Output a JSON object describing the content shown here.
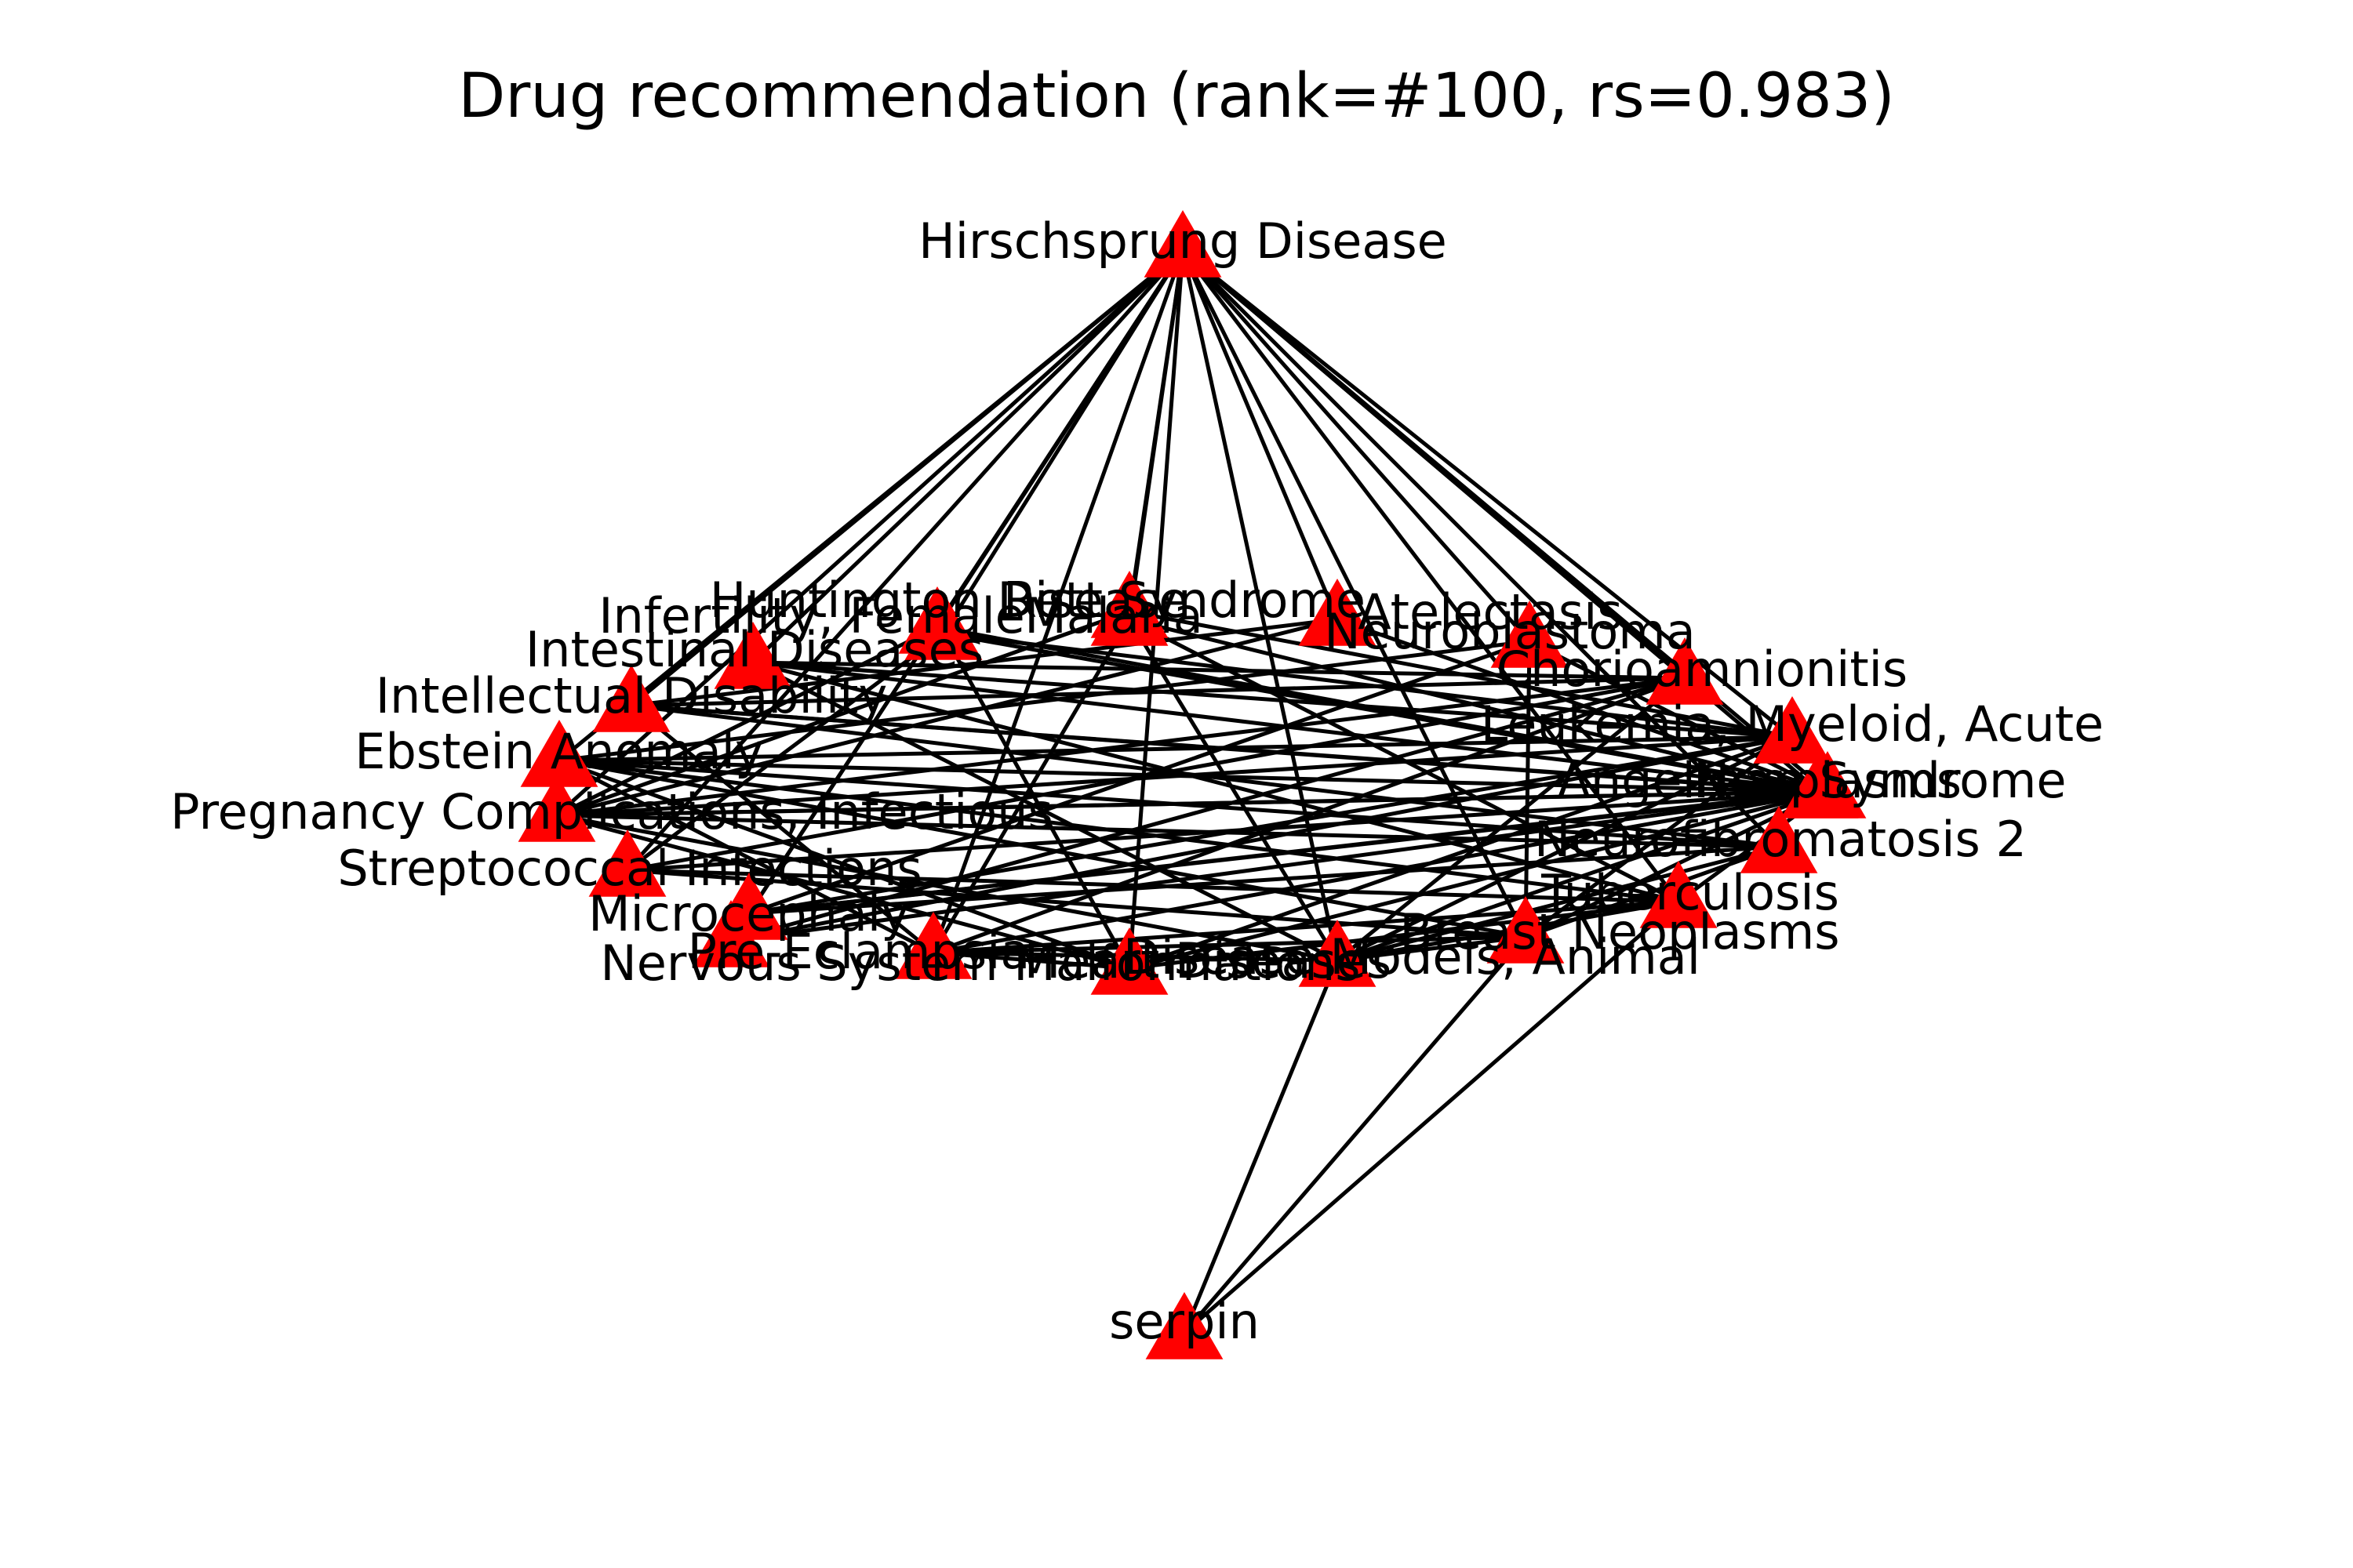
{
  "title": "Drug recommendation (rank=#100, rs=0.983)",
  "colors": {
    "node": "#ff0000",
    "edge": "#000000",
    "label": "#000000",
    "background": "#ffffff"
  },
  "node_shape": "triangle",
  "nodes": [
    {
      "id": "hirschsprung",
      "label": "Hirschsprung Disease"
    },
    {
      "id": "infertility",
      "label": "Infertility, Female"
    },
    {
      "id": "huntington",
      "label": "Huntington Disease"
    },
    {
      "id": "rett",
      "label": "Rett Syndrome"
    },
    {
      "id": "malaria",
      "label": "Malaria"
    },
    {
      "id": "atelectasis",
      "label": "Atelectasis"
    },
    {
      "id": "neuroblastoma",
      "label": "Neuroblastoma"
    },
    {
      "id": "intestinal",
      "label": "Intestinal Diseases"
    },
    {
      "id": "chorioamnionitis",
      "label": "Chorioamnionitis"
    },
    {
      "id": "intellectual",
      "label": "Intellectual Disability"
    },
    {
      "id": "leukemia",
      "label": "Leukemia, Myeloid, Acute"
    },
    {
      "id": "ebstein",
      "label": "Ebstein Anomaly"
    },
    {
      "id": "angelman",
      "label": "Angelman Syndrome"
    },
    {
      "id": "neoplasms",
      "label": "Neoplasms"
    },
    {
      "id": "pregnancy",
      "label": "Pregnancy Complications, Infectious"
    },
    {
      "id": "nf2",
      "label": "Neurofibromatosis 2"
    },
    {
      "id": "streptococcal",
      "label": "Streptococcal Infections"
    },
    {
      "id": "tuberculosis",
      "label": "Tuberculosis"
    },
    {
      "id": "microcephaly",
      "label": "Microcephaly"
    },
    {
      "id": "breast",
      "label": "Breast Neoplasms"
    },
    {
      "id": "preeclampsia",
      "label": "Pre-Eclampsia"
    },
    {
      "id": "nervous",
      "label": "Nervous System Malformations"
    },
    {
      "id": "disease_models",
      "label": "Disease Models, Animal"
    },
    {
      "id": "heart_disease",
      "label": "Heart Diseases"
    },
    {
      "id": "serpin",
      "label": "serpin"
    }
  ],
  "edges": [
    [
      "hirschsprung",
      "infertility"
    ],
    [
      "hirschsprung",
      "intestinal"
    ],
    [
      "hirschsprung",
      "intellectual"
    ],
    [
      "hirschsprung",
      "ebstein"
    ],
    [
      "hirschsprung",
      "pregnancy"
    ],
    [
      "hirschsprung",
      "streptococcal"
    ],
    [
      "hirschsprung",
      "microcephaly"
    ],
    [
      "hirschsprung",
      "preeclampsia"
    ],
    [
      "hirschsprung",
      "nervous"
    ],
    [
      "hirschsprung",
      "heart_disease"
    ],
    [
      "hirschsprung",
      "disease_models"
    ],
    [
      "hirschsprung",
      "breast"
    ],
    [
      "hirschsprung",
      "tuberculosis"
    ],
    [
      "hirschsprung",
      "nf2"
    ],
    [
      "hirschsprung",
      "neoplasms"
    ],
    [
      "hirschsprung",
      "leukemia"
    ],
    [
      "hirschsprung",
      "chorioamnionitis"
    ],
    [
      "hirschsprung",
      "neuroblastoma"
    ],
    [
      "hirschsprung",
      "atelectasis"
    ],
    [
      "hirschsprung",
      "malaria"
    ],
    [
      "hirschsprung",
      "rett"
    ],
    [
      "hirschsprung",
      "angelman"
    ],
    [
      "hirschsprung",
      "huntington"
    ],
    [
      "intestinal",
      "neoplasms"
    ],
    [
      "intestinal",
      "leukemia"
    ],
    [
      "intestinal",
      "chorioamnionitis"
    ],
    [
      "intestinal",
      "tuberculosis"
    ],
    [
      "intellectual",
      "neoplasms"
    ],
    [
      "intellectual",
      "nf2"
    ],
    [
      "intellectual",
      "angelman"
    ],
    [
      "intellectual",
      "chorioamnionitis"
    ],
    [
      "ebstein",
      "neoplasms"
    ],
    [
      "ebstein",
      "leukemia"
    ],
    [
      "ebstein",
      "nervous"
    ],
    [
      "ebstein",
      "breast"
    ],
    [
      "ebstein",
      "tuberculosis"
    ],
    [
      "pregnancy",
      "neoplasms"
    ],
    [
      "pregnancy",
      "nf2"
    ],
    [
      "pregnancy",
      "leukemia"
    ],
    [
      "pregnancy",
      "heart_disease"
    ],
    [
      "pregnancy",
      "disease_models"
    ],
    [
      "streptococcal",
      "neoplasms"
    ],
    [
      "streptococcal",
      "tuberculosis"
    ],
    [
      "streptococcal",
      "chorioamnionitis"
    ],
    [
      "streptococcal",
      "breast"
    ],
    [
      "microcephaly",
      "neoplasms"
    ],
    [
      "microcephaly",
      "nf2"
    ],
    [
      "microcephaly",
      "angelman"
    ],
    [
      "preeclampsia",
      "neoplasms"
    ],
    [
      "preeclampsia",
      "chorioamnionitis"
    ],
    [
      "preeclampsia",
      "leukemia"
    ],
    [
      "infertility",
      "neoplasms"
    ],
    [
      "infertility",
      "leukemia"
    ],
    [
      "infertility",
      "disease_models"
    ],
    [
      "infertility",
      "streptococcal"
    ],
    [
      "malaria",
      "neoplasms"
    ],
    [
      "malaria",
      "tuberculosis"
    ],
    [
      "malaria",
      "nervous"
    ],
    [
      "malaria",
      "heart_disease"
    ],
    [
      "atelectasis",
      "neoplasms"
    ],
    [
      "atelectasis",
      "pregnancy"
    ],
    [
      "atelectasis",
      "intellectual"
    ],
    [
      "neuroblastoma",
      "neoplasms"
    ],
    [
      "neuroblastoma",
      "breast"
    ],
    [
      "neuroblastoma",
      "ebstein"
    ],
    [
      "neuroblastoma",
      "microcephaly"
    ],
    [
      "chorioamnionitis",
      "pregnancy"
    ],
    [
      "chorioamnionitis",
      "heart_disease"
    ],
    [
      "chorioamnionitis",
      "nervous"
    ],
    [
      "leukemia",
      "breast"
    ],
    [
      "leukemia",
      "disease_models"
    ],
    [
      "leukemia",
      "heart_disease"
    ],
    [
      "leukemia",
      "microcephaly"
    ],
    [
      "neoplasms",
      "tuberculosis"
    ],
    [
      "neoplasms",
      "breast"
    ],
    [
      "neoplasms",
      "disease_models"
    ],
    [
      "neoplasms",
      "heart_disease"
    ],
    [
      "neoplasms",
      "nervous"
    ],
    [
      "nf2",
      "breast"
    ],
    [
      "nf2",
      "heart_disease"
    ],
    [
      "nf2",
      "ebstein"
    ],
    [
      "tuberculosis",
      "disease_models"
    ],
    [
      "tuberculosis",
      "heart_disease"
    ],
    [
      "tuberculosis",
      "nervous"
    ],
    [
      "breast",
      "heart_disease"
    ],
    [
      "breast",
      "nervous"
    ],
    [
      "disease_models",
      "nervous"
    ],
    [
      "heart_disease",
      "nervous"
    ],
    [
      "intestinal",
      "heart_disease"
    ],
    [
      "intellectual",
      "nervous"
    ],
    [
      "ebstein",
      "disease_models"
    ],
    [
      "huntington",
      "neoplasms"
    ],
    [
      "huntington",
      "pregnancy"
    ],
    [
      "rett",
      "leukemia"
    ],
    [
      "rett",
      "pregnancy"
    ],
    [
      "angelman",
      "pregnancy"
    ],
    [
      "serpin",
      "heart_disease"
    ],
    [
      "serpin",
      "breast"
    ],
    [
      "serpin",
      "tuberculosis"
    ]
  ]
}
